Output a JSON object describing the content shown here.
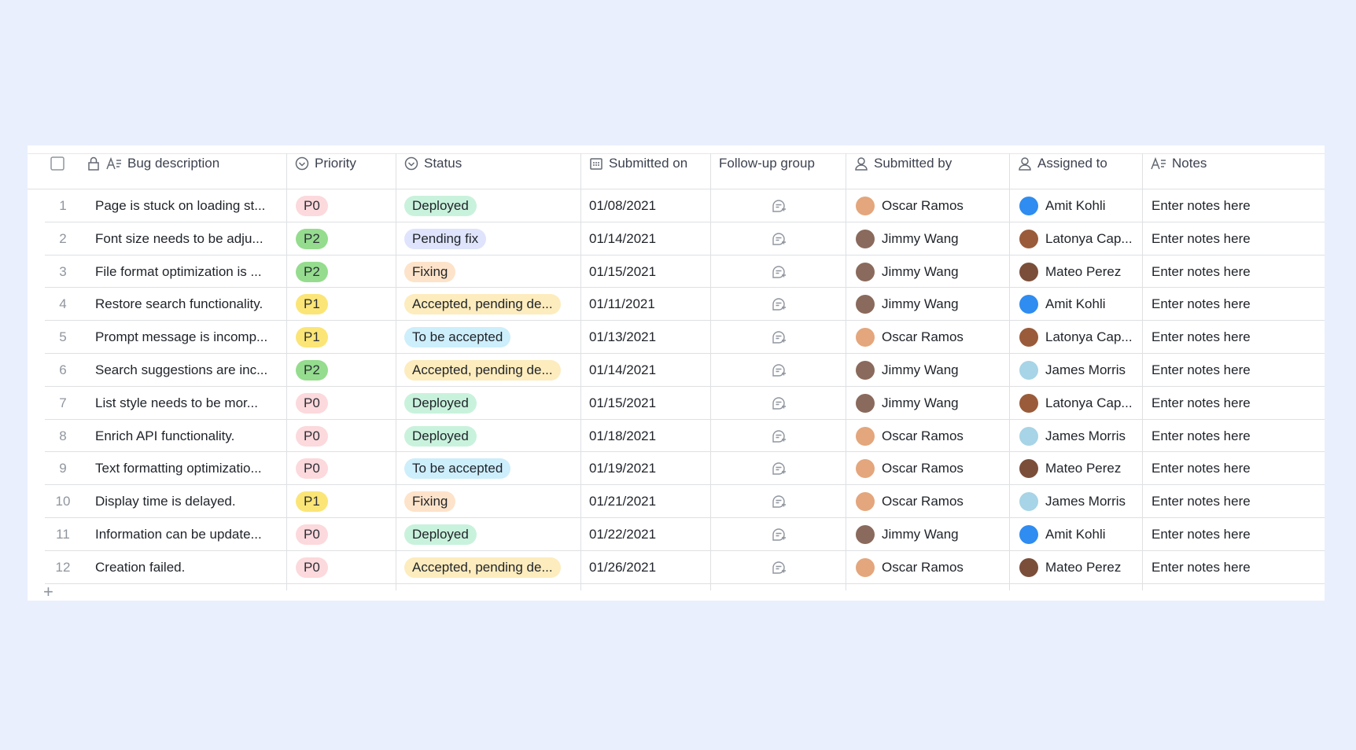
{
  "table": {
    "headers": [
      "Bug description",
      "Priority",
      "Status",
      "Submitted on",
      "Follow-up group",
      "Submitted by",
      "Assigned to",
      "Notes"
    ],
    "rows": [
      [
        "1",
        "Page is stuck on loading st...",
        "P0",
        "Deployed",
        "01/08/2021",
        "Oscar Ramos",
        "Amit Kohli",
        "Enter notes here"
      ],
      [
        "2",
        "Font size needs to be adju...",
        "P2",
        "Pending fix",
        "01/14/2021",
        "Jimmy Wang",
        "Latonya Cap...",
        "Enter notes here"
      ],
      [
        "3",
        "File format optimization is ...",
        "P2",
        "Fixing",
        "01/15/2021",
        "Jimmy Wang",
        "Mateo Perez",
        "Enter notes here"
      ],
      [
        "4",
        "Restore search functionality.",
        "P1",
        "Accepted, pending de...",
        "01/11/2021",
        "Jimmy Wang",
        "Amit Kohli",
        "Enter notes here"
      ],
      [
        "5",
        "Prompt message is incomp...",
        "P1",
        "To be accepted",
        "01/13/2021",
        "Oscar Ramos",
        "Latonya Cap...",
        "Enter notes here"
      ],
      [
        "6",
        "Search suggestions are inc...",
        "P2",
        "Accepted, pending de...",
        "01/14/2021",
        "Jimmy Wang",
        "James Morris",
        "Enter notes here"
      ],
      [
        "7",
        "List style needs to be mor...",
        "P0",
        "Deployed",
        "01/15/2021",
        "Jimmy Wang",
        "Latonya Cap...",
        "Enter notes here"
      ],
      [
        "8",
        "Enrich API functionality.",
        "P0",
        "Deployed",
        "01/18/2021",
        "Oscar Ramos",
        "James Morris",
        "Enter notes here"
      ],
      [
        "9",
        "Text formatting optimizatio...",
        "P0",
        "To be accepted",
        "01/19/2021",
        "Oscar Ramos",
        "Mateo Perez",
        "Enter notes here"
      ],
      [
        "10",
        "Display time is delayed.",
        "P1",
        "Fixing",
        "01/21/2021",
        "Oscar Ramos",
        "James Morris",
        "Enter notes here"
      ],
      [
        "11",
        "Information can be update...",
        "P0",
        "Deployed",
        "01/22/2021",
        "Jimmy Wang",
        "Amit Kohli",
        "Enter notes here"
      ],
      [
        "12",
        "Creation failed.",
        "P0",
        "Accepted, pending de...",
        "01/26/2021",
        "Oscar Ramos",
        "Mateo Perez",
        "Enter notes here"
      ]
    ]
  }
}
